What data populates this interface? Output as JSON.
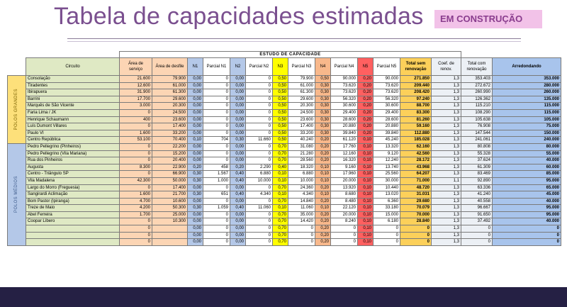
{
  "title": "Tabela de capacidades estimadas",
  "badge": "EM CONSTRUÇÃO",
  "table": {
    "caption": "ESTUDO DE CAPACIDADE",
    "headers": [
      "Circuito",
      "Área de serviço",
      "Área de desfile",
      "N1",
      "Parcial N1",
      "N2",
      "Parcial N2",
      "N3",
      "Parcial N3",
      "N4",
      "Parcial N4",
      "N5",
      "Parcial N5",
      "Total sem renovação",
      "Coef. de renov.",
      "Total com renovação",
      "Arredondando"
    ],
    "groups": [
      {
        "label": "POLOS GRANDES",
        "rows": [
          [
            "Consolação",
            "21.600",
            "79.900",
            "0,00",
            "0",
            "0,00",
            "0",
            "0,50",
            "79.900",
            "0,50",
            "90.000",
            "0,20",
            "90.000",
            "271.850",
            "1,3",
            "353.403",
            "353.000"
          ],
          [
            "Tiradentes",
            "12.600",
            "61.000",
            "0,00",
            "0",
            "0,00",
            "0",
            "0,50",
            "61.000",
            "0,30",
            "73.620",
            "0,20",
            "73.620",
            "209.440",
            "1,3",
            "272.672",
            "280.000"
          ],
          [
            "Ibirapuera",
            "31.900",
            "61.300",
            "0,00",
            "0",
            "0,00",
            "0",
            "0,50",
            "61.300",
            "0,30",
            "73.620",
            "0,20",
            "73.620",
            "208.420",
            "1,3",
            "260.990",
            "260.000"
          ],
          [
            "Barrini",
            "17.700",
            "29.600",
            "0,00",
            "0",
            "0,00",
            "0",
            "0,50",
            "29.600",
            "0,30",
            "56.320",
            "0,20",
            "56.320",
            "97.240",
            "1,3",
            "126.362",
            "135.000"
          ],
          [
            "Marquês de São Vicente",
            "3.000",
            "20.300",
            "0,00",
            "0",
            "0,00",
            "0",
            "0,50",
            "20.300",
            "0,30",
            "30.600",
            "0,20",
            "30.600",
            "88.700",
            "1,3",
            "115.210",
            "115.000"
          ],
          [
            "Faria Lima / JK",
            "0",
            "24.500",
            "0,00",
            "0",
            "0,00",
            "0",
            "0,50",
            "24.500",
            "0,30",
            "29.400",
            "0,20",
            "29.400",
            "83.300",
            "1,3",
            "108.290",
            "115.000"
          ],
          [
            "Henrique Schaumann",
            "400",
            "23.600",
            "0,00",
            "0",
            "0,00",
            "0",
            "0,50",
            "23.600",
            "0,30",
            "28.600",
            "0,20",
            "28.600",
            "81.260",
            "1,3",
            "105.638",
            "105.000"
          ],
          [
            "Luís Dumont Villares",
            "0",
            "17.400",
            "0,00",
            "0",
            "0,00",
            "0",
            "0,50",
            "17.400",
            "0,30",
            "20.880",
            "0,20",
            "20.880",
            "59.160",
            "1,3",
            "76.908",
            "75.000"
          ],
          [
            "Paulo VI",
            "1.600",
            "33.200",
            "0,00",
            "0",
            "0,00",
            "0",
            "0,50",
            "33.200",
            "0,30",
            "39.840",
            "0,20",
            "39.840",
            "112.880",
            "1,3",
            "147.544",
            "150.000"
          ],
          [
            "Centro República",
            "53.100",
            "70.400",
            "0,10",
            "704",
            "0,30",
            "11.660",
            "0,50",
            "40.240",
            "0,20",
            "61.120",
            "0,10",
            "45.240",
            "185.028",
            "1,3",
            "241.061",
            "240.000"
          ]
        ]
      },
      {
        "label": "POLOS MÉDIOS",
        "rows": [
          [
            "Pedro Pellegrino (Pinheiros)",
            "0",
            "22.200",
            "0,00",
            "0",
            "0,00",
            "0",
            "0,70",
            "31.080",
            "0,20",
            "17.760",
            "0,10",
            "13.320",
            "62.160",
            "1,3",
            "80.808",
            "80.000"
          ],
          [
            "Pedro Pellegrino (Vila Mariana)",
            "0",
            "15.200",
            "0,00",
            "0",
            "0,00",
            "0",
            "0,70",
            "21.280",
            "0,20",
            "12.160",
            "0,10",
            "9.120",
            "42.560",
            "1,3",
            "55.328",
            "55.000"
          ],
          [
            "Rua dos Pinheiros",
            "0",
            "20.400",
            "0,00",
            "0",
            "0,00",
            "0",
            "0,70",
            "28.560",
            "0,20",
            "16.320",
            "0,10",
            "12.240",
            "28.172",
            "1,3",
            "37.624",
            "40.000"
          ],
          [
            "Augusta",
            "8.300",
            "22.900",
            "0,20",
            "458",
            "0,20",
            "2.290",
            "0,40",
            "18.320",
            "0,10",
            "9.160",
            "0,10",
            "13.740",
            "43.968",
            "1,3",
            "61.309",
            "60.000"
          ],
          [
            "Centro - Triângulo SP",
            "0",
            "66.900",
            "0,30",
            "1.567",
            "0,40",
            "6.880",
            "0,10",
            "6.880",
            "0,10",
            "17.960",
            "0,10",
            "25.560",
            "64.207",
            "1,3",
            "83.469",
            "85.000"
          ],
          [
            "Vila Madalena",
            "42.300",
            "50.000",
            "0,30",
            "1.000",
            "0,40",
            "10.000",
            "0,10",
            "10.000",
            "0,10",
            "20.000",
            "0,10",
            "30.000",
            "71.000",
            "1,1",
            "92.890",
            "95.000"
          ],
          [
            "Largo do Morro (Freguesia)",
            "0",
            "17.400",
            "0,00",
            "0",
            "0,00",
            "0",
            "0,70",
            "24.360",
            "0,20",
            "13.920",
            "0,10",
            "10.440",
            "48.720",
            "1,3",
            "63.336",
            "65.000"
          ],
          [
            "Sangirardi Aclimação",
            "1.600",
            "21.700",
            "0,30",
            "651",
            "0,40",
            "4.340",
            "0,10",
            "4.340",
            "0,10",
            "8.680",
            "0,10",
            "13.020",
            "31.031",
            "1,3",
            "41.240",
            "45.000"
          ],
          [
            "Bom Pastor (Ipiranga)",
            "4.700",
            "10.600",
            "0,00",
            "0",
            "0,00",
            "0",
            "0,70",
            "14.840",
            "0,20",
            "8.480",
            "0,10",
            "6.360",
            "29.680",
            "1,3",
            "40.558",
            "40.000"
          ],
          [
            "Treze de Maio",
            "4.200",
            "50.300",
            "0,30",
            "1.059",
            "0,40",
            "11.060",
            "0,10",
            "11.060",
            "0,10",
            "22.120",
            "0,10",
            "33.180",
            "70.079",
            "1,3",
            "96.667",
            "95.000"
          ],
          [
            "Abel Ferreira",
            "1.700",
            "25.000",
            "0,00",
            "0",
            "0,00",
            "0",
            "0,70",
            "35.000",
            "0,20",
            "20.000",
            "0,10",
            "15.000",
            "70.000",
            "1,3",
            "91.650",
            "95.000"
          ],
          [
            "Coopar Líbero",
            "0",
            "10.300",
            "0,00",
            "0",
            "0,00",
            "0",
            "0,70",
            "14.420",
            "0,20",
            "8.240",
            "0,10",
            "6.180",
            "28.840",
            "1,3",
            "37.492",
            "40.000"
          ],
          [
            "",
            "0",
            "",
            "0,00",
            "0",
            "0,00",
            "0",
            "0,70",
            "0",
            "0,20",
            "0",
            "0,10",
            "0",
            "0",
            "1,3",
            "0",
            "0"
          ],
          [
            "",
            "0",
            "",
            "0,00",
            "0",
            "0,00",
            "0",
            "0,70",
            "0",
            "0,20",
            "0",
            "0,10",
            "0",
            "0",
            "1,3",
            "0",
            "0"
          ],
          [
            "",
            "0",
            "",
            "0,00",
            "0",
            "0,00",
            "0",
            "0,70",
            "0",
            "0,20",
            "0",
            "0,10",
            "0",
            "0",
            "1,3",
            "0",
            "0"
          ]
        ]
      }
    ]
  }
}
